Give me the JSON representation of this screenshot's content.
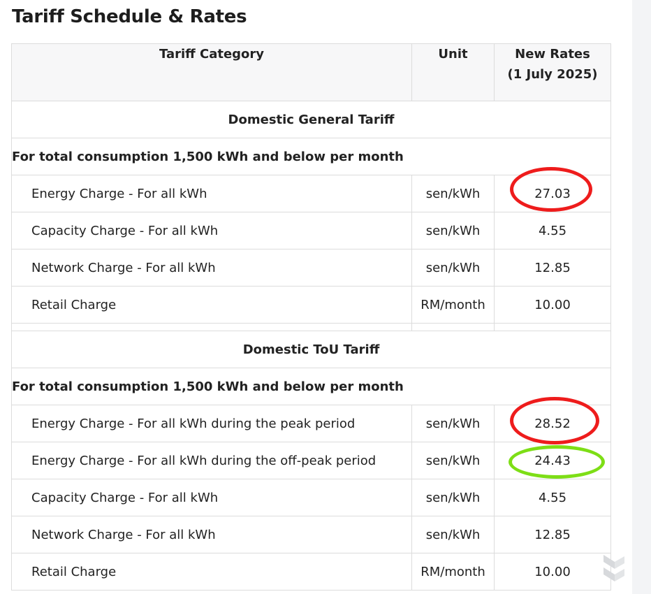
{
  "page": {
    "title": "Tariff Schedule & Rates"
  },
  "table": {
    "headers": {
      "category": "Tariff Category",
      "unit": "Unit",
      "rates_line1": "New Rates",
      "rates_line2": "(1 July 2025)"
    },
    "sections": [
      {
        "title": "Domestic General Tariff",
        "subheading": "For total consumption 1,500 kWh and below per month",
        "rows": [
          {
            "label": "Energy Charge - For all kWh",
            "unit": "sen/kWh",
            "rate": "27.03",
            "highlight": "red"
          },
          {
            "label": "Capacity Charge - For all kWh",
            "unit": "sen/kWh",
            "rate": "4.55"
          },
          {
            "label": "Network Charge - For all kWh",
            "unit": "sen/kWh",
            "rate": "12.85"
          },
          {
            "label": "Retail Charge",
            "unit": "RM/month",
            "rate": "10.00"
          }
        ]
      },
      {
        "title": "Domestic ToU Tariff",
        "subheading": "For total consumption 1,500 kWh and below per month",
        "rows": [
          {
            "label": "Energy Charge - For all kWh during the peak period",
            "unit": "sen/kWh",
            "rate": "28.52",
            "highlight": "red"
          },
          {
            "label": "Energy Charge - For all kWh during the off-peak period",
            "unit": "sen/kWh",
            "rate": "24.43",
            "highlight": "green"
          },
          {
            "label": "Capacity Charge - For all kWh",
            "unit": "sen/kWh",
            "rate": "4.55"
          },
          {
            "label": "Network Charge - For all kWh",
            "unit": "sen/kWh",
            "rate": "12.85"
          },
          {
            "label": "Retail Charge",
            "unit": "RM/month",
            "rate": "10.00"
          }
        ]
      }
    ]
  },
  "colors": {
    "highlight_red": "#ee1c1c",
    "highlight_green": "#7dde16",
    "header_bg": "#f7f7f8",
    "border": "#dcdcdc"
  },
  "icons": {
    "watermark": "site-logo-icon"
  }
}
